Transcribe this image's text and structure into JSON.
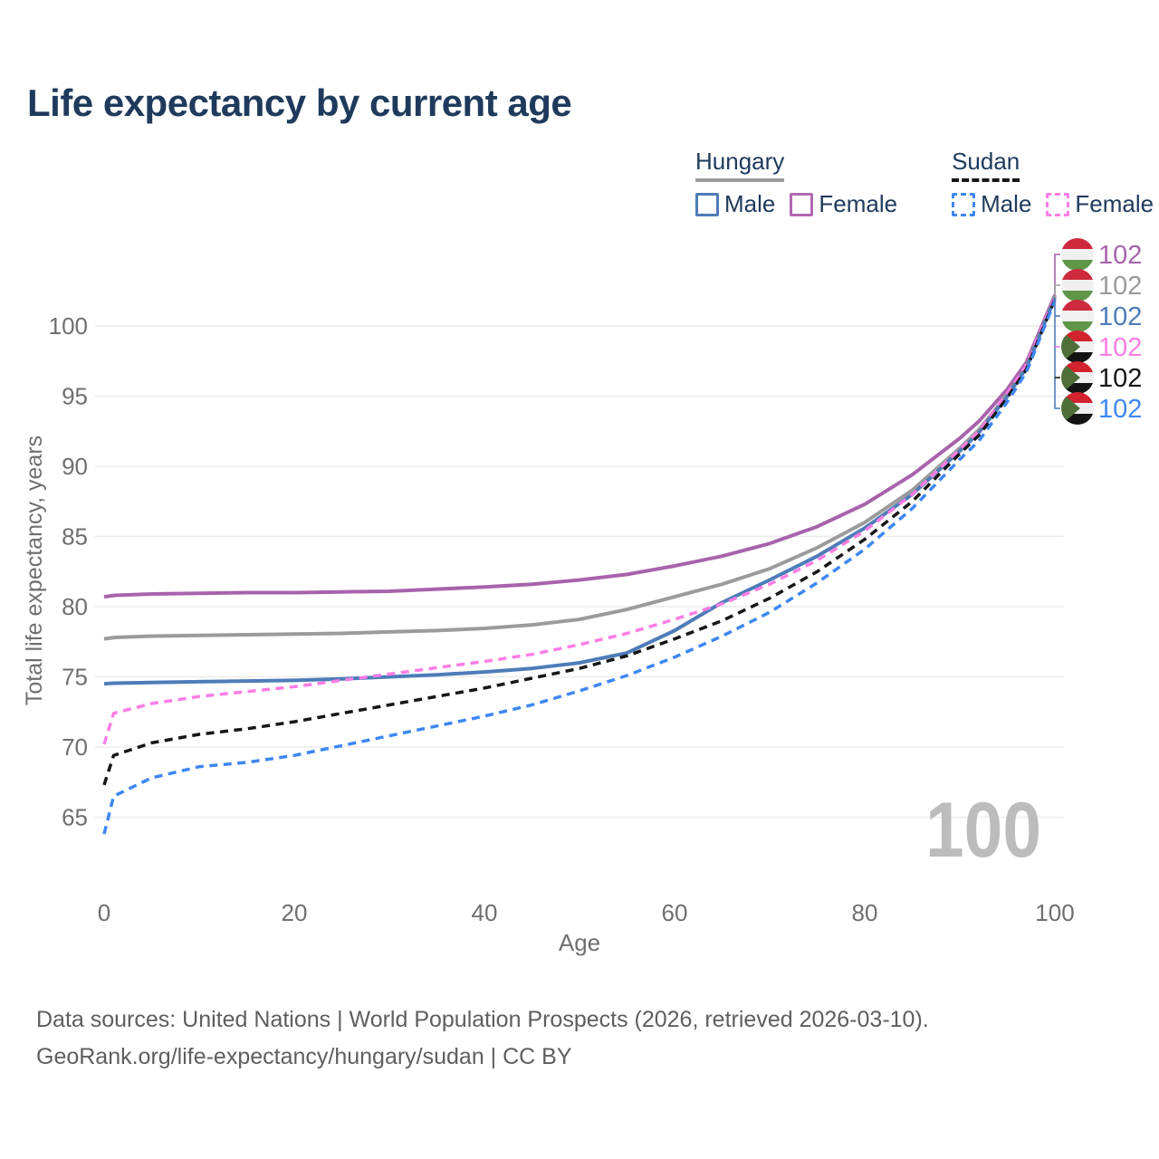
{
  "title": "Life expectancy by current age",
  "legend": {
    "groups": [
      {
        "name": "Hungary",
        "underline": {
          "style": "solid",
          "color": "#9b9b9b"
        },
        "items": [
          {
            "label": "Male",
            "color": "#4d7cb8",
            "dash": false
          },
          {
            "label": "Female",
            "color": "#b168b1",
            "dash": false
          }
        ]
      },
      {
        "name": "Sudan",
        "underline": {
          "style": "dashed",
          "color": "#161616"
        },
        "items": [
          {
            "label": "Male",
            "color": "#3e87f2",
            "dash": true
          },
          {
            "label": "Female",
            "color": "#fb7de4",
            "dash": true
          }
        ]
      }
    ]
  },
  "watermark": "100",
  "footer": {
    "line1": "Data sources: United Nations | World Population Prospects (2026, retrieved 2026-03-10).",
    "line2": "GeoRank.org/life-expectancy/hungary/sudan | CC BY"
  },
  "colors": {
    "title_text": "#1e3a5c",
    "axis_text": "#6f6f6f",
    "gridline": "#ececec",
    "watermark": "#bcbcbc",
    "footer_text": "#5e5e5e"
  },
  "chart_data": {
    "type": "line",
    "title": "Life expectancy by current age",
    "xlabel": "Age",
    "ylabel": "Total life expectancy, years",
    "x_ticks": [
      0,
      20,
      40,
      60,
      80,
      100
    ],
    "y_ticks": [
      65,
      70,
      75,
      80,
      85,
      90,
      95,
      100
    ],
    "xlim": [
      0,
      100
    ],
    "ylim": [
      63,
      103
    ],
    "grid": "horizontal",
    "legend_position": "top-right",
    "x": [
      0,
      1,
      5,
      10,
      15,
      20,
      25,
      30,
      35,
      40,
      45,
      50,
      55,
      60,
      65,
      70,
      75,
      80,
      85,
      90,
      92,
      95,
      97,
      100
    ],
    "series": [
      {
        "name": "Hungary Female",
        "group": "Hungary",
        "sex": "Female",
        "country": "hungary",
        "color": "#a763ab",
        "dash": false,
        "end_label": "102",
        "values": [
          80.7,
          80.8,
          80.9,
          80.95,
          81.0,
          81.0,
          81.05,
          81.1,
          81.25,
          81.4,
          81.6,
          81.9,
          82.3,
          82.9,
          83.6,
          84.5,
          85.7,
          87.3,
          89.4,
          92.0,
          93.2,
          95.5,
          97.4,
          102.2
        ]
      },
      {
        "name": "Hungary Both sexes",
        "group": "Hungary",
        "sex": "Both",
        "country": "hungary",
        "color": "#9b9b9b",
        "dash": false,
        "end_label": "102",
        "values": [
          77.7,
          77.8,
          77.9,
          77.95,
          78.0,
          78.05,
          78.1,
          78.2,
          78.3,
          78.45,
          78.7,
          79.1,
          79.8,
          80.7,
          81.6,
          82.7,
          84.2,
          86.0,
          88.3,
          91.3,
          92.6,
          95.1,
          97.1,
          102.1
        ]
      },
      {
        "name": "Hungary Male",
        "group": "Hungary",
        "sex": "Male",
        "country": "hungary",
        "color": "#4d7cb8",
        "dash": false,
        "end_label": "102",
        "values": [
          74.5,
          74.55,
          74.6,
          74.65,
          74.7,
          74.75,
          74.85,
          75.0,
          75.15,
          75.35,
          75.6,
          76.0,
          76.7,
          78.3,
          80.3,
          81.9,
          83.6,
          85.6,
          88.0,
          91.1,
          92.4,
          95.0,
          97.0,
          102.0
        ]
      },
      {
        "name": "Sudan Female",
        "group": "Sudan",
        "sex": "Female",
        "country": "sudan",
        "color": "#fb7de4",
        "dash": true,
        "end_label": "102",
        "values": [
          70.2,
          72.4,
          73.1,
          73.6,
          73.95,
          74.3,
          74.75,
          75.2,
          75.65,
          76.1,
          76.6,
          77.3,
          78.1,
          79.1,
          80.2,
          81.6,
          83.3,
          85.4,
          88.0,
          91.2,
          92.5,
          95.2,
          97.2,
          102.1
        ]
      },
      {
        "name": "Sudan Both sexes",
        "group": "Sudan",
        "sex": "Both",
        "country": "sudan",
        "color": "#161616",
        "dash": true,
        "end_label": "102",
        "values": [
          67.3,
          69.4,
          70.3,
          70.9,
          71.3,
          71.8,
          72.4,
          73.0,
          73.6,
          74.2,
          74.9,
          75.6,
          76.5,
          77.7,
          79.0,
          80.6,
          82.5,
          84.8,
          87.5,
          90.9,
          92.2,
          94.9,
          96.9,
          101.9
        ]
      },
      {
        "name": "Sudan Male",
        "group": "Sudan",
        "sex": "Male",
        "country": "sudan",
        "color": "#3e87f2",
        "dash": true,
        "end_label": "102",
        "values": [
          63.8,
          66.5,
          67.8,
          68.6,
          68.9,
          69.4,
          70.1,
          70.8,
          71.5,
          72.2,
          73.0,
          74.0,
          75.1,
          76.4,
          77.9,
          79.6,
          81.7,
          84.1,
          87.0,
          90.5,
          91.8,
          94.6,
          96.7,
          101.8
        ]
      }
    ],
    "flags": {
      "hungary": {
        "type": "bands",
        "colors": [
          "#cd2a3e",
          "#f0f0f0",
          "#5f9648"
        ]
      },
      "sudan": {
        "type": "bands_triangle",
        "colors": [
          "#d2232e",
          "#f0f0f0",
          "#141414"
        ],
        "triangle": "#4e7038"
      }
    }
  }
}
